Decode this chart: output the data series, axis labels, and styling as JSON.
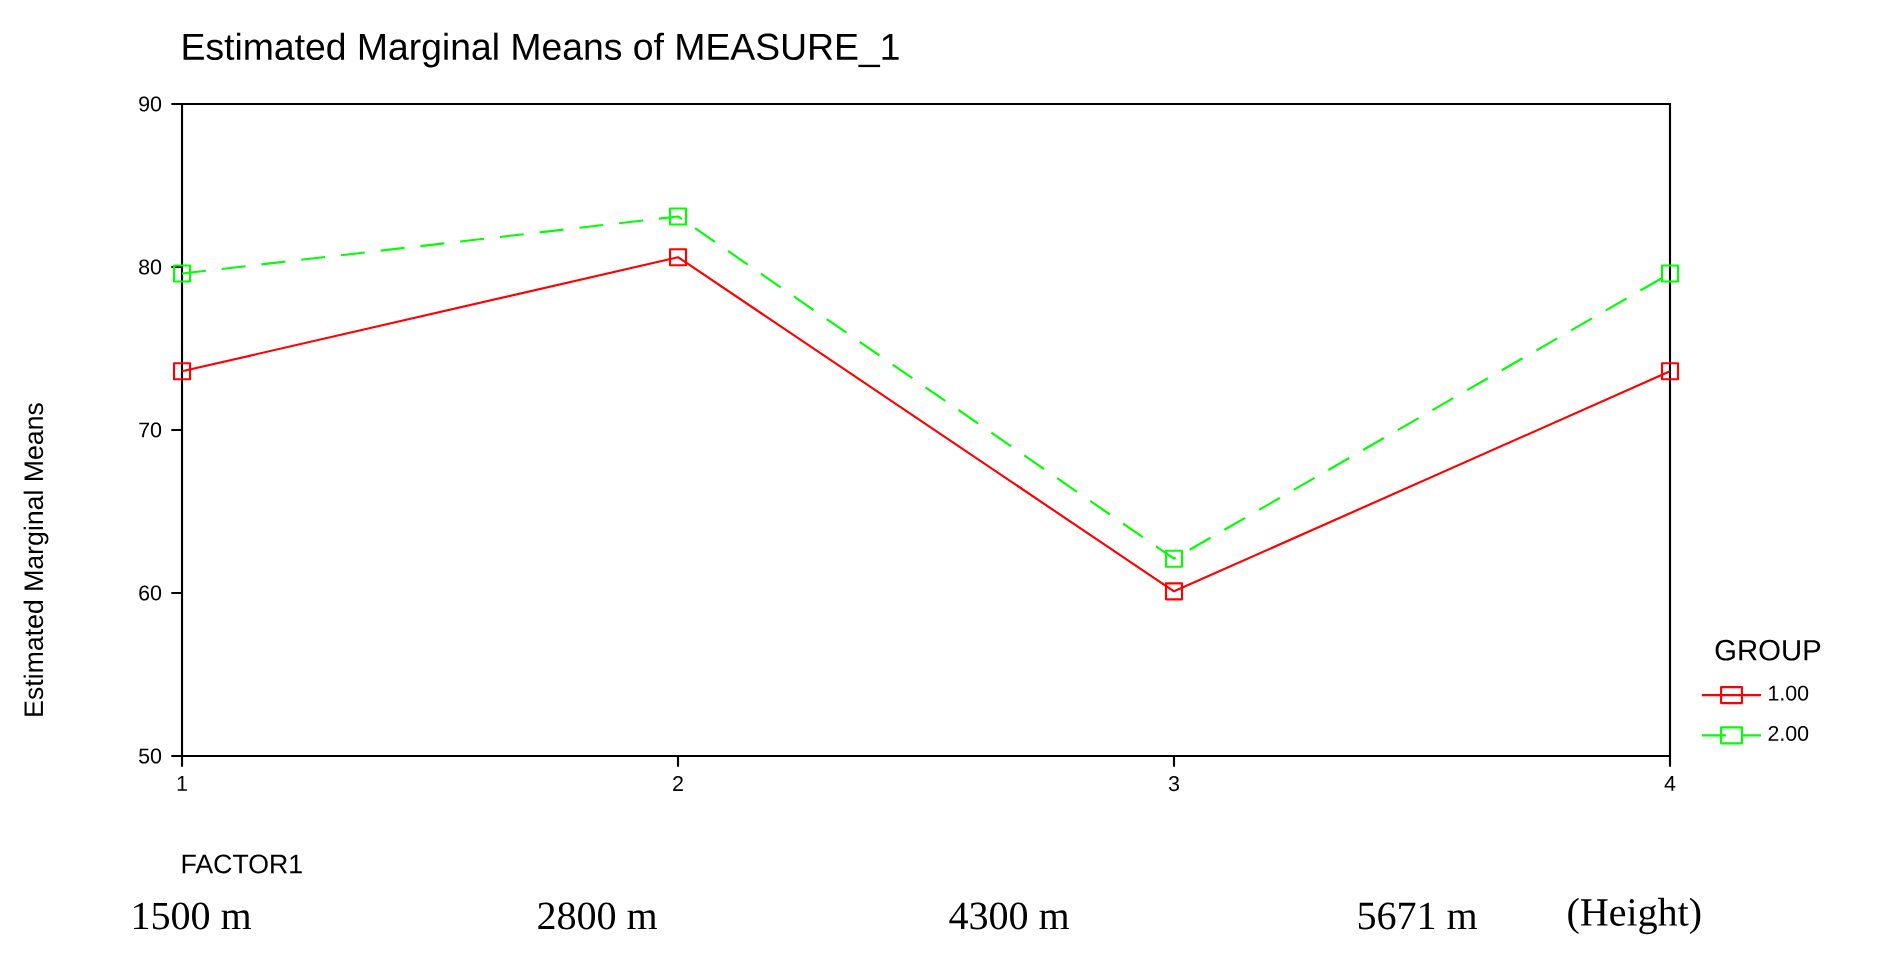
{
  "chart_data": {
    "type": "line",
    "title": "Estimated Marginal Means of MEASURE_1",
    "xlabel": "FACTOR1",
    "ylabel": "Estimated Marginal Means",
    "legend_title": "GROUP",
    "x": [
      1,
      2,
      3,
      4
    ],
    "series": [
      {
        "name": "1.00",
        "color": "#ff0000",
        "line_style": "solid",
        "values": [
          73.6,
          80.6,
          60.1,
          73.6
        ]
      },
      {
        "name": "2.00",
        "color": "#00ff00",
        "line_style": "dashed",
        "values": [
          79.6,
          83.1,
          62.1,
          79.6
        ]
      }
    ],
    "xlim": [
      1,
      4
    ],
    "xticks": [
      1,
      2,
      3,
      4
    ],
    "ylim": [
      50,
      90
    ],
    "yticks": [
      50,
      60,
      70,
      80,
      90
    ],
    "marker": "square",
    "grid": false,
    "legend": "bottom right",
    "annotations": [
      "1500 m",
      "2800 m",
      "4300 m",
      "5671 m",
      "(Height)"
    ]
  }
}
